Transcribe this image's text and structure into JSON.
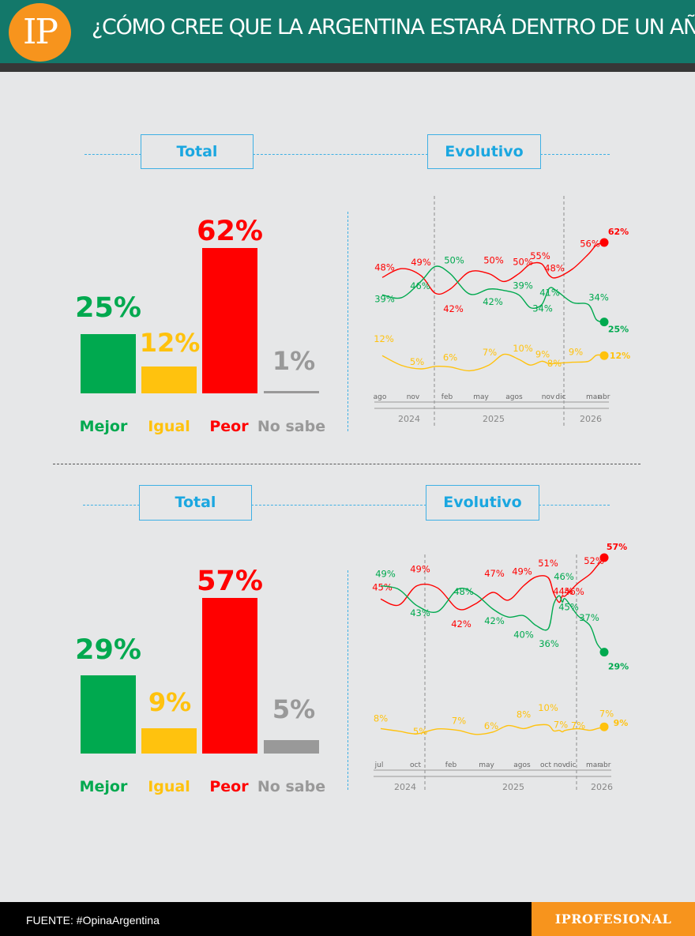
{
  "header": {
    "logo": "IP",
    "title": "¿CÓMO CREE QUE LA ARGENTINA ESTARÁ DENTRO DE UN AÑO?"
  },
  "footer": {
    "source": "FUENTE: #OpinaArgentina",
    "brand": "IPROFESIONAL"
  },
  "colors": {
    "mejor": "#00a94f",
    "igual": "#ffc20e",
    "peor": "#ff0000",
    "no_sabe": "#999999",
    "accent": "#1ba7e0",
    "header_bg": "#13786a",
    "brand_orange": "#f7941d"
  },
  "sections": [
    {
      "total_label": "Total",
      "evol_label": "Evolutivo",
      "bars": [
        {
          "label": "Mejor",
          "value": 25,
          "text": "25%"
        },
        {
          "label": "Igual",
          "value": 12,
          "text": "12%"
        },
        {
          "label": "Peor",
          "value": 62,
          "text": "62%"
        },
        {
          "label": "No sabe",
          "value": 1,
          "text": "1%"
        }
      ]
    },
    {
      "total_label": "Total",
      "evol_label": "Evolutivo",
      "bars": [
        {
          "label": "Mejor",
          "value": 29,
          "text": "29%"
        },
        {
          "label": "Igual",
          "value": 9,
          "text": "9%"
        },
        {
          "label": "Peor",
          "value": 57,
          "text": "57%"
        },
        {
          "label": "No sabe",
          "value": 5,
          "text": "5%"
        }
      ]
    }
  ],
  "chart_data": [
    {
      "type": "bar",
      "title": "Total",
      "categories": [
        "Mejor",
        "Igual",
        "Peor",
        "No sabe"
      ],
      "values": [
        25,
        12,
        62,
        1
      ]
    },
    {
      "type": "line",
      "title": "Evolutivo",
      "month_ticks": [
        "ago",
        "nov",
        "feb",
        "may",
        "agos",
        "nov",
        "dic",
        "mar",
        "abr"
      ],
      "years": [
        "2024",
        "2025",
        "2026"
      ],
      "series": [
        {
          "color": "#ff0000",
          "values": [
            48,
            49,
            42,
            50,
            50,
            55,
            48,
            56,
            62
          ],
          "labels": [
            "48%",
            "49%",
            "42%",
            "50%",
            "50%",
            "55%",
            "48%",
            "56%",
            "62%"
          ]
        },
        {
          "color": "#00a94f",
          "values": [
            39,
            46,
            50,
            42,
            39,
            34,
            41,
            34,
            25
          ],
          "labels": [
            "39%",
            "46%",
            "50%",
            "42%",
            "39%",
            "34%",
            "41%",
            "34%",
            "25%"
          ]
        },
        {
          "color": "#ffc20e",
          "values": [
            12,
            5,
            6,
            7,
            10,
            9,
            8,
            9,
            12
          ],
          "labels": [
            "12%",
            "5%",
            "6%",
            "7%",
            "10%",
            "9%",
            "8%",
            "9%",
            "12%"
          ]
        }
      ]
    },
    {
      "type": "bar",
      "title": "Total",
      "categories": [
        "Mejor",
        "Igual",
        "Peor",
        "No sabe"
      ],
      "values": [
        29,
        9,
        57,
        5
      ]
    },
    {
      "type": "line",
      "title": "Evolutivo",
      "month_ticks": [
        "jul",
        "oct",
        "feb",
        "may",
        "agos",
        "oct",
        "nov",
        "dic",
        "mar",
        "abr"
      ],
      "years": [
        "2024",
        "2025",
        "2026"
      ],
      "series": [
        {
          "color": "#ff0000",
          "values": [
            45,
            49,
            42,
            47,
            49,
            51,
            44,
            46,
            52,
            57
          ],
          "labels": [
            "45%",
            "49%",
            "42%",
            "47%",
            "49%",
            "51%",
            "44%",
            "46%",
            "52%",
            "57%"
          ]
        },
        {
          "color": "#00a94f",
          "values": [
            49,
            43,
            48,
            42,
            40,
            36,
            46,
            45,
            37,
            29
          ],
          "labels": [
            "49%",
            "43%",
            "48%",
            "42%",
            "40%",
            "36%",
            "46%",
            "45%",
            "37%",
            "29%"
          ]
        },
        {
          "color": "#ffc20e",
          "values": [
            8,
            5,
            7,
            6,
            8,
            10,
            7,
            7,
            7,
            9
          ],
          "labels": [
            "8%",
            "5%",
            "7%",
            "6%",
            "8%",
            "10%",
            "7%",
            "7%",
            "7%",
            "9%"
          ]
        }
      ]
    }
  ]
}
